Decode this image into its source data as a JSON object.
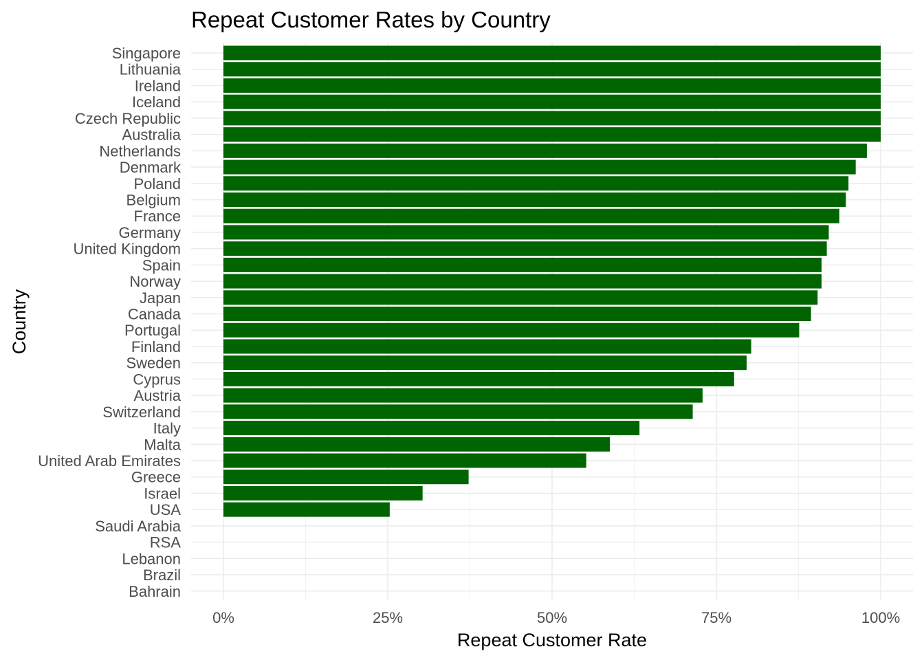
{
  "chart_data": {
    "type": "bar",
    "orientation": "horizontal",
    "title": "Repeat Customer Rates by Country",
    "xlabel": "Repeat Customer Rate",
    "ylabel": "Country",
    "xlim": [
      0,
      1
    ],
    "x_ticks": [
      0,
      0.25,
      0.5,
      0.75,
      1.0
    ],
    "x_tick_labels": [
      "0%",
      "25%",
      "50%",
      "75%",
      "100%"
    ],
    "grid": true,
    "bar_color": "#006400",
    "categories": [
      "Singapore",
      "Lithuania",
      "Ireland",
      "Iceland",
      "Czech Republic",
      "Australia",
      "Netherlands",
      "Denmark",
      "Poland",
      "Belgium",
      "France",
      "Germany",
      "United Kingdom",
      "Spain",
      "Norway",
      "Japan",
      "Canada",
      "Portugal",
      "Finland",
      "Sweden",
      "Cyprus",
      "Austria",
      "Switzerland",
      "Italy",
      "Malta",
      "United Arab Emirates",
      "Greece",
      "Israel",
      "USA",
      "Saudi Arabia",
      "RSA",
      "Lebanon",
      "Brazil",
      "Bahrain"
    ],
    "values": [
      1.0,
      1.0,
      1.0,
      1.0,
      1.0,
      1.0,
      0.979,
      0.962,
      0.951,
      0.947,
      0.937,
      0.921,
      0.918,
      0.91,
      0.91,
      0.904,
      0.894,
      0.876,
      0.803,
      0.796,
      0.777,
      0.729,
      0.714,
      0.633,
      0.588,
      0.552,
      0.373,
      0.303,
      0.253,
      0,
      0,
      0,
      0,
      0
    ]
  }
}
